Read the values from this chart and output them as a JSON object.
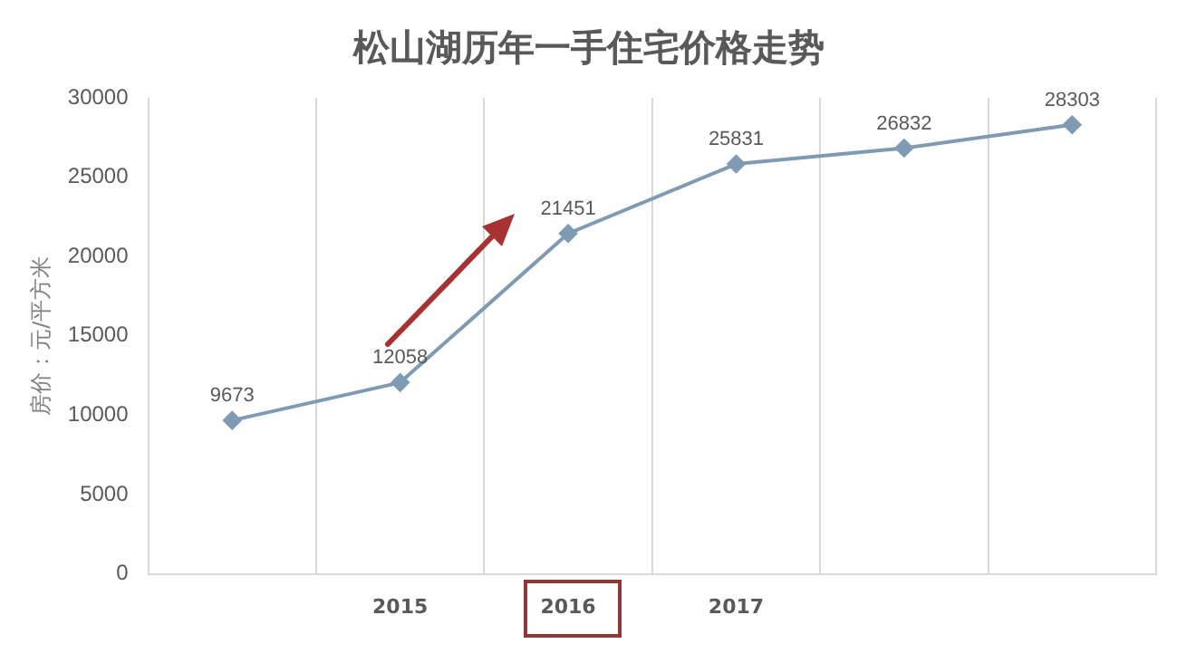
{
  "chart_data": {
    "type": "line",
    "title": "松山湖历年一手住宅价格走势",
    "ylabel": "房价：元/平方米",
    "categories": [
      null,
      "2015",
      "2016",
      "2017",
      null,
      null
    ],
    "series": [
      {
        "color": "#7f9bb3",
        "values": [
          9673,
          12058,
          21451,
          25831,
          26832,
          28303
        ]
      }
    ],
    "ylim": [
      0,
      30000
    ],
    "yticks": [
      0,
      5000,
      10000,
      15000,
      20000,
      25000,
      30000
    ],
    "grid": "x",
    "marker": "diamond",
    "line_style": "solid",
    "data_labels": true,
    "legend": false
  }
}
